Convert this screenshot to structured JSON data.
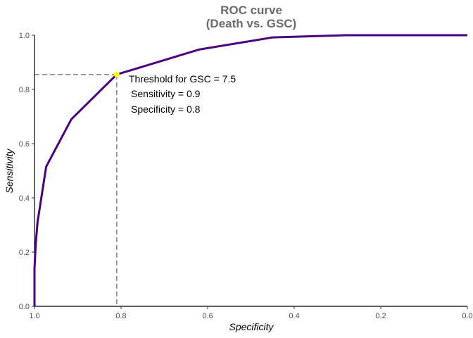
{
  "chart_data": {
    "type": "line",
    "title_line1": "ROC curve",
    "title_line2": "(Death vs. GSC)",
    "xlabel": "Specificity",
    "ylabel": "Sensitivity",
    "x_reversed": true,
    "xlim": [
      1.0,
      0.0
    ],
    "ylim": [
      0.0,
      1.0
    ],
    "x_ticks": [
      "1.0",
      "0.8",
      "0.6",
      "0.4",
      "0.2",
      "0.0"
    ],
    "y_ticks": [
      "0.0",
      "0.2",
      "0.4",
      "0.6",
      "0.8",
      "1.0"
    ],
    "grid": false,
    "line_color": "#4b0082",
    "threshold_point_color": "#ffff00",
    "guide_color": "#808080",
    "series": [
      {
        "specificity": [
          1.0,
          1.0,
          0.997,
          0.993,
          0.973,
          0.915,
          0.81,
          0.62,
          0.45,
          0.28,
          0.0
        ],
        "sensitivity": [
          0.0,
          0.14,
          0.23,
          0.31,
          0.515,
          0.69,
          0.855,
          0.947,
          0.992,
          1.0,
          1.0
        ]
      }
    ],
    "threshold_point": {
      "specificity": 0.81,
      "sensitivity": 0.855
    },
    "annotation": {
      "line1": "Threshold for GSC = 7.5",
      "line2": "Sensitivity = 0.9",
      "line3": "Specificity = 0.8"
    }
  }
}
